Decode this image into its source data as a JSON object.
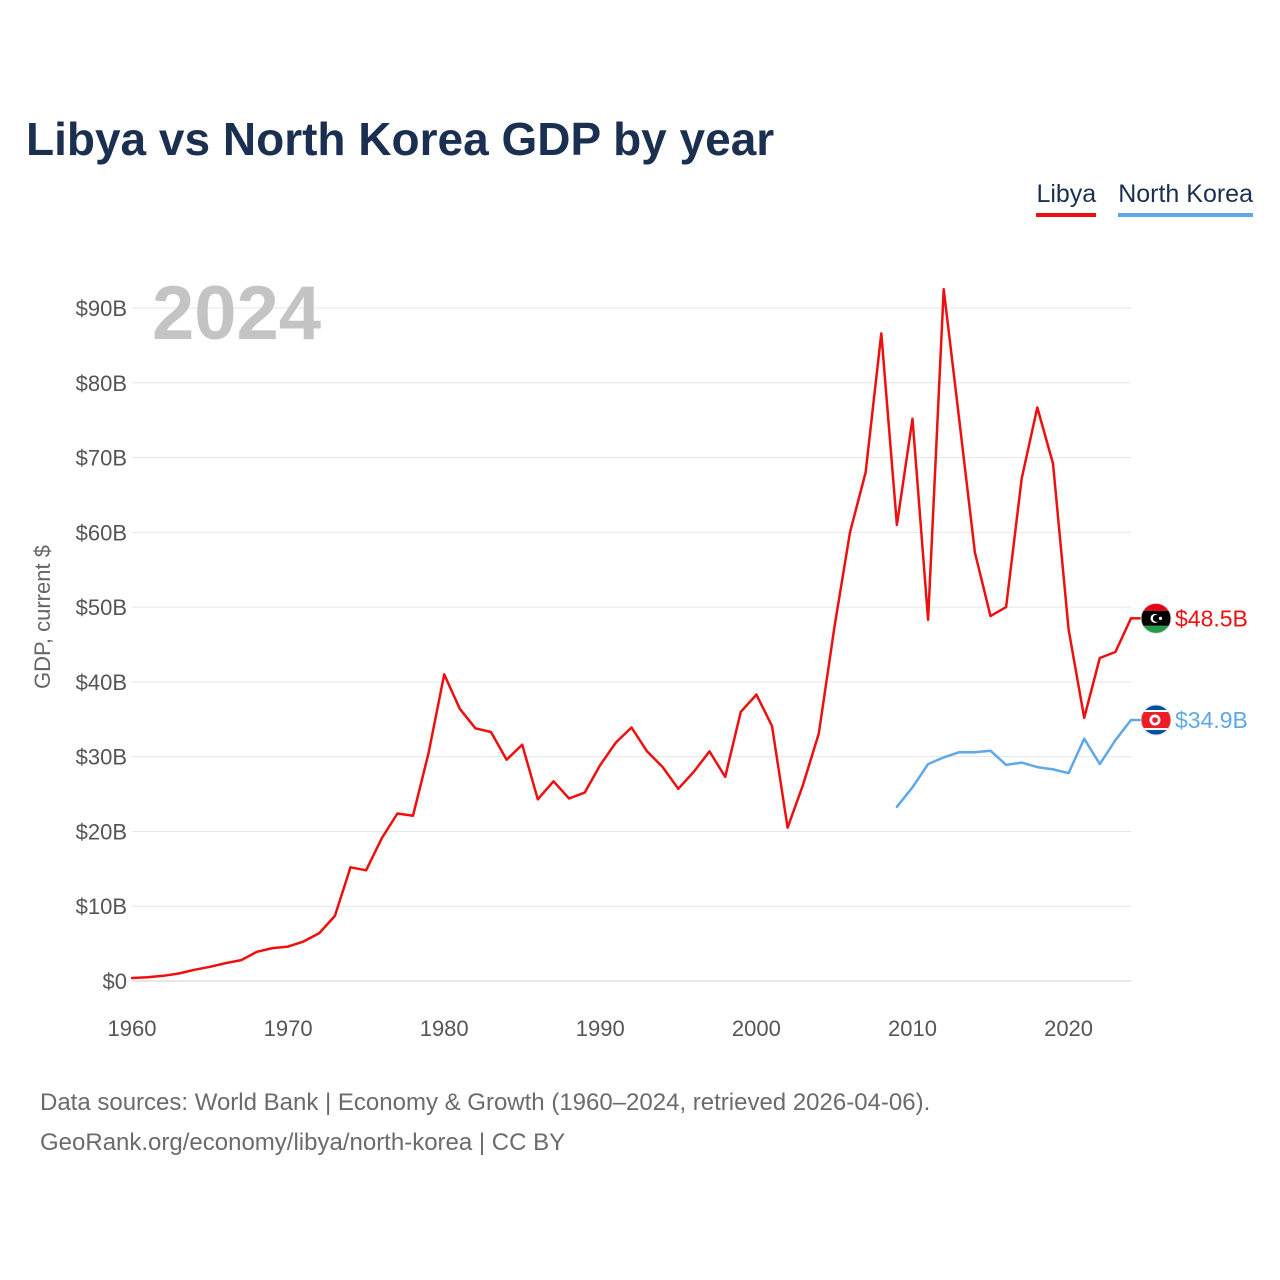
{
  "chart_data": {
    "type": "line",
    "title": "Libya vs North Korea GDP by year",
    "year_display": "2024",
    "ylabel": "GDP, current $",
    "xlabel": "",
    "xlim": [
      1960,
      2024
    ],
    "ylim": [
      0,
      90
    ],
    "y_unit": "billion USD",
    "x_ticks": [
      1960,
      1970,
      1980,
      1990,
      2000,
      2010,
      2020
    ],
    "x_tick_labels": [
      "1960",
      "1970",
      "1980",
      "1990",
      "2000",
      "2010",
      "2020"
    ],
    "y_ticks": [
      0,
      10,
      20,
      30,
      40,
      50,
      60,
      70,
      80,
      90
    ],
    "y_tick_labels": [
      "$0",
      "$10B",
      "$20B",
      "$30B",
      "$40B",
      "$50B",
      "$60B",
      "$70B",
      "$80B",
      "$90B"
    ],
    "grid": true,
    "legend_position": "top-right",
    "series": [
      {
        "name": "Libya",
        "color": "#ee0f0f",
        "end_label": "$48.5B",
        "flag": "libya-flag",
        "x": [
          1960,
          1961,
          1962,
          1963,
          1964,
          1965,
          1966,
          1967,
          1968,
          1969,
          1970,
          1971,
          1972,
          1973,
          1974,
          1975,
          1976,
          1977,
          1978,
          1979,
          1980,
          1981,
          1982,
          1983,
          1984,
          1985,
          1986,
          1987,
          1988,
          1989,
          1990,
          1991,
          1992,
          1993,
          1994,
          1995,
          1996,
          1997,
          1998,
          1999,
          2000,
          2001,
          2002,
          2003,
          2004,
          2005,
          2006,
          2007,
          2008,
          2009,
          2010,
          2011,
          2012,
          2013,
          2014,
          2015,
          2016,
          2017,
          2018,
          2019,
          2020,
          2021,
          2022,
          2023,
          2024
        ],
        "values": [
          0.4,
          0.5,
          0.7,
          1.0,
          1.5,
          1.9,
          2.4,
          2.8,
          3.9,
          4.4,
          4.6,
          5.3,
          6.4,
          8.7,
          15.2,
          14.8,
          19.1,
          22.4,
          22.1,
          30.5,
          41.0,
          36.4,
          33.8,
          33.3,
          29.6,
          31.6,
          24.3,
          26.7,
          24.4,
          25.2,
          28.9,
          31.9,
          33.9,
          30.7,
          28.6,
          25.7,
          28.0,
          30.7,
          27.3,
          36.0,
          38.3,
          34.1,
          20.5,
          26.3,
          33.1,
          47.3,
          60.0,
          68.0,
          86.6,
          61.0,
          75.2,
          48.3,
          92.5,
          75.0,
          57.3,
          48.8,
          50.0,
          67.2,
          76.7,
          69.2,
          47.0,
          35.2,
          43.2,
          44.0,
          48.5
        ]
      },
      {
        "name": "North Korea",
        "color": "#5fa8e8",
        "end_label": "$34.9B",
        "flag": "north-korea-flag",
        "x": [
          2009,
          2010,
          2011,
          2012,
          2013,
          2014,
          2015,
          2016,
          2017,
          2018,
          2019,
          2020,
          2021,
          2022,
          2023,
          2024
        ],
        "values": [
          23.3,
          25.9,
          29.0,
          29.9,
          30.6,
          30.6,
          30.8,
          28.9,
          29.2,
          28.6,
          28.3,
          27.8,
          32.4,
          29.0,
          32.2,
          34.9
        ]
      }
    ]
  },
  "source": {
    "line1": "Data sources: World Bank | Economy & Growth (1960–2024, retrieved 2026-04-06).",
    "line2": "GeoRank.org/economy/libya/north-korea | CC BY"
  }
}
